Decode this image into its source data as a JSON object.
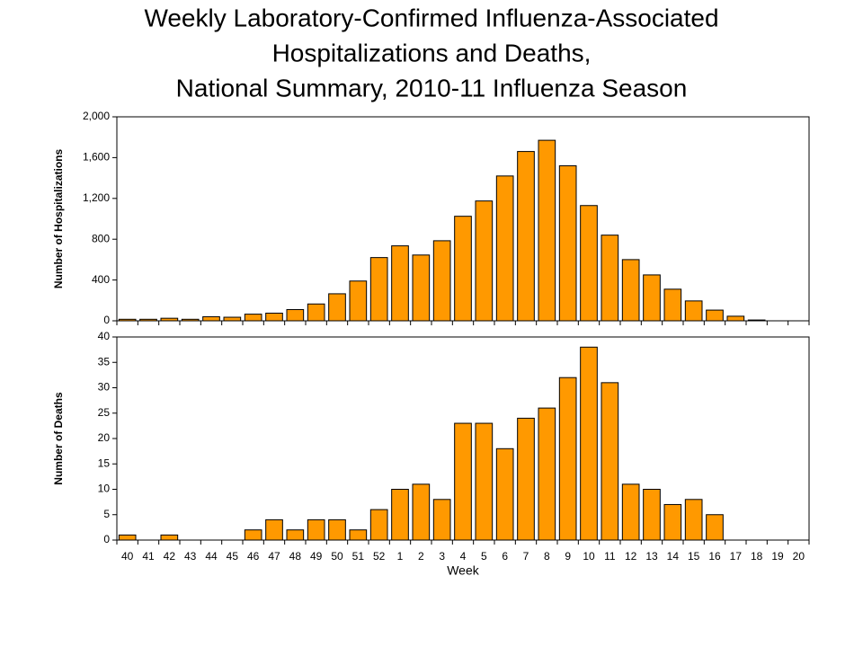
{
  "title": [
    "Weekly Laboratory-Confirmed Influenza-Associated",
    "Hospitalizations and Deaths,",
    "National Summary, 2010-11 Influenza Season"
  ],
  "chart_data": [
    {
      "type": "bar",
      "y_label": "Number of Hospitalizations",
      "color": "#ff9900",
      "values": [
        15,
        15,
        25,
        15,
        40,
        35,
        65,
        75,
        110,
        165,
        265,
        390,
        620,
        735,
        645,
        785,
        1025,
        1175,
        1420,
        1660,
        1770,
        1520,
        1130,
        840,
        600,
        450,
        310,
        195,
        105,
        45,
        8,
        0,
        0
      ],
      "ylim": [
        0,
        2000
      ],
      "yticks": [
        0,
        400,
        800,
        {
          "value": 1200,
          "label": "1,200"
        },
        {
          "value": 1600,
          "label": "1,600"
        },
        {
          "value": 2000,
          "label": "2,000"
        }
      ]
    },
    {
      "type": "bar",
      "y_label": "Number of Deaths",
      "x_label": "Week",
      "color": "#ff9900",
      "categories": [
        "40",
        "41",
        "42",
        "43",
        "44",
        "45",
        "46",
        "47",
        "48",
        "49",
        "50",
        "51",
        "52",
        "1",
        "2",
        "3",
        "4",
        "5",
        "6",
        "7",
        "8",
        "9",
        "10",
        "11",
        "12",
        "13",
        "14",
        "15",
        "16",
        "17",
        "18",
        "19",
        "20"
      ],
      "values": [
        1,
        0,
        1,
        0,
        0,
        0,
        2,
        4,
        2,
        4,
        4,
        2,
        6,
        10,
        11,
        8,
        23,
        23,
        18,
        24,
        26,
        32,
        38,
        31,
        11,
        10,
        7,
        8,
        5,
        0,
        0,
        0,
        0
      ],
      "ylim": [
        0,
        40
      ],
      "yticks": [
        0,
        5,
        10,
        15,
        20,
        25,
        30,
        35,
        40
      ]
    }
  ]
}
